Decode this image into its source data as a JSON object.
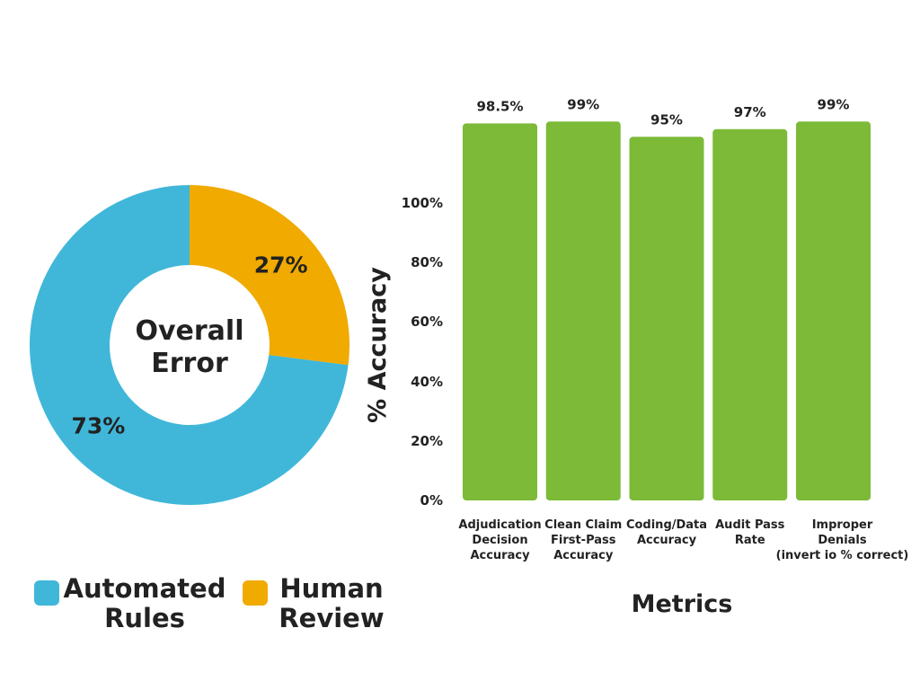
{
  "chart_data": [
    {
      "type": "pie",
      "center_label": [
        "Overall",
        "Error"
      ],
      "slices": [
        {
          "label": "Human Review",
          "value": 27,
          "value_label": "27%",
          "color": "#F0AA00"
        },
        {
          "label": "Automated Rules",
          "value": 73,
          "value_label": "73%",
          "color": "#40B7D9"
        }
      ],
      "legend": [
        {
          "lines": [
            "Automated",
            "Rules"
          ],
          "color": "#40B7D9"
        },
        {
          "lines": [
            "Human",
            "Review"
          ],
          "color": "#F0AA00"
        }
      ]
    },
    {
      "type": "bar",
      "ylabel": "% Accuracy",
      "xlabel": "Metrics",
      "yticks": [
        "0%",
        "20%",
        "40%",
        "60%",
        "80%",
        "100%"
      ],
      "bar_color": "#7CBA38",
      "categories": [
        [
          "Adjudication",
          "Decision",
          "Accuracy"
        ],
        [
          "Clean Claim",
          "First-Pass",
          "Accuracy"
        ],
        [
          "Coding/Data",
          "Accuracy"
        ],
        [
          "Audit Pass",
          "Rate"
        ],
        [
          "Improper",
          "Denials",
          "(invert io % correct)"
        ]
      ],
      "values": [
        98.5,
        99,
        95,
        97,
        99
      ],
      "value_labels": [
        "98.5%",
        "99%",
        "95%",
        "97%",
        "99%"
      ]
    }
  ]
}
